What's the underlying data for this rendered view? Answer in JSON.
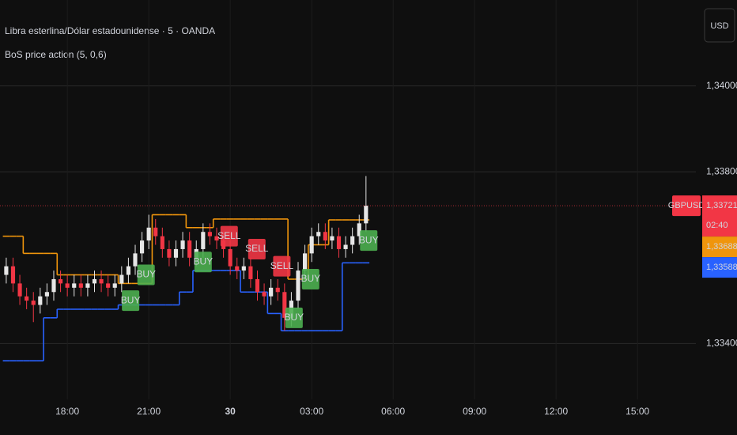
{
  "chart_data": {
    "type": "candlestick",
    "title": "Libra esterlina/Dólar estadounidense · 5 · OANDA",
    "subtitle": "BoS price action (5, 0,6)",
    "currency_button": "USD",
    "symbol_tag": "GBPUSD",
    "countdown": "02:40",
    "xlim": [
      15.52,
      41.15
    ],
    "xticks": [
      {
        "value": 18,
        "label": "18:00"
      },
      {
        "value": 21,
        "label": "21:00"
      },
      {
        "value": 24,
        "label": "30"
      },
      {
        "value": 27,
        "label": "03:00"
      },
      {
        "value": 30,
        "label": "06:00"
      },
      {
        "value": 33,
        "label": "09:00"
      },
      {
        "value": 36,
        "label": "12:00"
      },
      {
        "value": 39,
        "label": "15:00"
      }
    ],
    "ylim": [
      1.3327,
      1.342
    ],
    "yticks": [
      {
        "value": 1.334,
        "label": "1,33400"
      },
      {
        "value": 1.338,
        "label": "1,33800"
      },
      {
        "value": 1.34,
        "label": "1,34000"
      }
    ],
    "grid": true,
    "up_color": "#e6e6e6",
    "down_color": "#f23645",
    "x": [
      15.75,
      16,
      16.25,
      16.5,
      16.75,
      17,
      17.25,
      17.5,
      17.75,
      18,
      18.25,
      18.5,
      18.75,
      19,
      19.25,
      19.5,
      19.75,
      20,
      20.25,
      20.5,
      20.75,
      21,
      21.25,
      21.5,
      21.75,
      22,
      22.25,
      22.5,
      22.75,
      23,
      23.25,
      23.5,
      23.75,
      24,
      24.25,
      24.5,
      24.75,
      25,
      25.25,
      25.5,
      25.75,
      26,
      26.25,
      26.5,
      26.75,
      27,
      27.25,
      27.5,
      27.75,
      28,
      28.25,
      28.5,
      28.75,
      29
    ],
    "open": [
      1.3356,
      1.3358,
      1.3354,
      1.3351,
      1.335,
      1.3349,
      1.3351,
      1.3352,
      1.3355,
      1.3354,
      1.3353,
      1.3354,
      1.3353,
      1.3354,
      1.3355,
      1.3354,
      1.3353,
      1.3354,
      1.3356,
      1.3358,
      1.3361,
      1.3364,
      1.3367,
      1.3365,
      1.3362,
      1.336,
      1.3362,
      1.3364,
      1.336,
      1.3362,
      1.3366,
      1.3365,
      1.3364,
      1.3362,
      1.3358,
      1.3357,
      1.3358,
      1.3355,
      1.3352,
      1.3351,
      1.3353,
      1.3352,
      1.3346,
      1.335,
      1.3357,
      1.3361,
      1.3365,
      1.3366,
      1.3364,
      1.3365,
      1.3362,
      1.3363,
      1.3365,
      1.3368
    ],
    "high": [
      1.336,
      1.336,
      1.3356,
      1.3353,
      1.3352,
      1.3353,
      1.3354,
      1.3357,
      1.3357,
      1.3356,
      1.3356,
      1.3356,
      1.3356,
      1.3357,
      1.3357,
      1.3356,
      1.3356,
      1.3358,
      1.336,
      1.3363,
      1.3366,
      1.337,
      1.3369,
      1.3367,
      1.3364,
      1.3364,
      1.3366,
      1.3366,
      1.3364,
      1.3368,
      1.3368,
      1.3367,
      1.3366,
      1.3364,
      1.336,
      1.336,
      1.336,
      1.3357,
      1.3354,
      1.3355,
      1.3355,
      1.3354,
      1.3352,
      1.3359,
      1.3363,
      1.3367,
      1.3368,
      1.3368,
      1.3367,
      1.3367,
      1.3365,
      1.3367,
      1.337,
      1.3379
    ],
    "low": [
      1.3354,
      1.3352,
      1.3349,
      1.3348,
      1.3345,
      1.3347,
      1.3349,
      1.335,
      1.3352,
      1.3351,
      1.3351,
      1.3351,
      1.3351,
      1.3352,
      1.3352,
      1.3351,
      1.3351,
      1.3352,
      1.3354,
      1.3356,
      1.3359,
      1.3362,
      1.3363,
      1.336,
      1.3358,
      1.3358,
      1.336,
      1.3358,
      1.3358,
      1.336,
      1.3363,
      1.3362,
      1.336,
      1.3356,
      1.3355,
      1.3355,
      1.3353,
      1.335,
      1.3349,
      1.3349,
      1.335,
      1.3343,
      1.3344,
      1.3348,
      1.3355,
      1.3359,
      1.3363,
      1.3362,
      1.3362,
      1.336,
      1.336,
      1.3361,
      1.3363,
      1.3366
    ],
    "close": [
      1.3358,
      1.3354,
      1.3351,
      1.335,
      1.3349,
      1.3351,
      1.3352,
      1.3355,
      1.3354,
      1.3353,
      1.3354,
      1.3353,
      1.3354,
      1.3355,
      1.3354,
      1.3353,
      1.3354,
      1.3356,
      1.3358,
      1.3361,
      1.3364,
      1.3367,
      1.3365,
      1.3362,
      1.336,
      1.3362,
      1.3364,
      1.336,
      1.3362,
      1.3366,
      1.3365,
      1.3364,
      1.3362,
      1.3358,
      1.3357,
      1.3358,
      1.3355,
      1.3352,
      1.3351,
      1.3353,
      1.3352,
      1.3346,
      1.335,
      1.3357,
      1.3361,
      1.3365,
      1.3366,
      1.3364,
      1.3365,
      1.3362,
      1.3363,
      1.3365,
      1.3368,
      1.33721
    ],
    "series": [
      {
        "color": "#f0950c",
        "values": [
          1.3365,
          1.3365,
          1.3365,
          1.3361,
          1.3361,
          1.3361,
          1.3361,
          1.3361,
          1.3356,
          1.3356,
          1.3356,
          1.3356,
          1.3356,
          1.3356,
          1.3356,
          1.3356,
          1.3356,
          1.3354,
          1.3354,
          1.3354,
          1.3354,
          1.3354,
          1.337,
          1.337,
          1.337,
          1.337,
          1.337,
          1.3367,
          1.3367,
          1.3367,
          1.3367,
          1.3369,
          1.3369,
          1.3369,
          1.3369,
          1.3369,
          1.3369,
          1.3369,
          1.3369,
          1.3369,
          1.3369,
          1.3369,
          1.3355,
          1.3355,
          1.3355,
          1.3363,
          1.3363,
          1.3363,
          1.33688,
          1.33688,
          1.33688,
          1.33688,
          1.33688,
          1.33688
        ]
      },
      {
        "color": "#2962ff",
        "values": [
          1.3336,
          1.3336,
          1.3336,
          1.3336,
          1.3336,
          1.3336,
          1.3346,
          1.3346,
          1.3348,
          1.3348,
          1.3348,
          1.3348,
          1.3348,
          1.3348,
          1.3348,
          1.3348,
          1.3348,
          1.3349,
          1.3349,
          1.3349,
          1.3349,
          1.3349,
          1.3349,
          1.3349,
          1.3349,
          1.3349,
          1.3352,
          1.3352,
          1.3357,
          1.3357,
          1.3357,
          1.3357,
          1.3357,
          1.3357,
          1.3357,
          1.3352,
          1.3352,
          1.3352,
          1.3352,
          1.3347,
          1.3347,
          1.3343,
          1.3343,
          1.3343,
          1.3343,
          1.3343,
          1.3343,
          1.3343,
          1.3343,
          1.3343,
          1.33588,
          1.33588,
          1.33588,
          1.33588
        ]
      }
    ],
    "signals": [
      {
        "x": 20.33,
        "price": 1.335,
        "label": "BUY",
        "color": "#4caf50"
      },
      {
        "x": 20.9,
        "price": 1.3356,
        "label": "BUY",
        "color": "#4caf50"
      },
      {
        "x": 23.0,
        "price": 1.3359,
        "label": "BUY",
        "color": "#4caf50"
      },
      {
        "x": 23.96,
        "price": 1.3365,
        "label": "SELL",
        "color": "#f23645"
      },
      {
        "x": 24.98,
        "price": 1.3362,
        "label": "SELL",
        "color": "#f23645"
      },
      {
        "x": 25.9,
        "price": 1.3358,
        "label": "SELL",
        "color": "#f23645"
      },
      {
        "x": 26.35,
        "price": 1.3346,
        "label": "BUY",
        "color": "#4caf50"
      },
      {
        "x": 26.96,
        "price": 1.3355,
        "label": "BUY",
        "color": "#4caf50"
      },
      {
        "x": 29.1,
        "price": 1.3364,
        "label": "BUY",
        "color": "#4caf50"
      }
    ],
    "price_tags": [
      {
        "value": 1.33721,
        "label": "1,33721",
        "color": "#f23645"
      },
      {
        "value": 1.33688,
        "label": "1,33688",
        "color": "#f0950c"
      },
      {
        "value": 1.33588,
        "label": "1,33588",
        "color": "#2962ff"
      }
    ]
  }
}
